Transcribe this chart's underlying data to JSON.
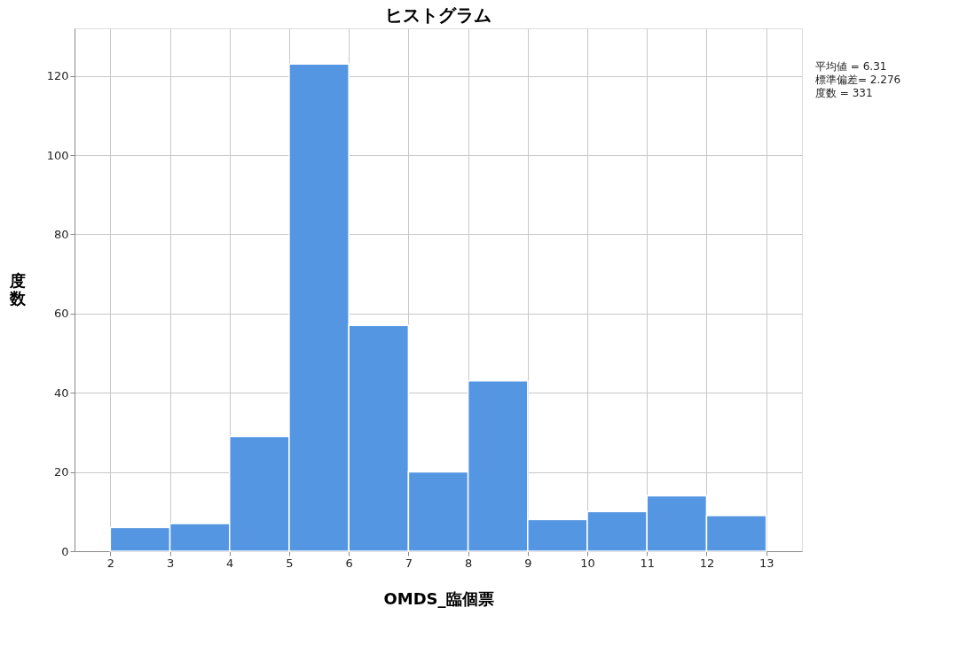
{
  "chart_data": {
    "type": "histogram",
    "title": "ヒストグラム",
    "xlabel": "OMDS_臨個票",
    "ylabel": "度数",
    "bins": [
      2,
      3,
      4,
      5,
      6,
      7,
      8,
      9,
      10,
      11,
      12,
      13
    ],
    "values": [
      6,
      7,
      29,
      123,
      57,
      20,
      43,
      8,
      10,
      14,
      9
    ],
    "color": "#5596e3",
    "xlim": [
      1.4,
      13.6
    ],
    "xticks": [
      2,
      3,
      4,
      5,
      6,
      7,
      8,
      9,
      10,
      11,
      12,
      13
    ],
    "ylim": [
      0,
      132
    ],
    "yticks": [
      0,
      20,
      40,
      60,
      80,
      100,
      120
    ],
    "grid": true,
    "annotations": [
      "平均値 = 6.31",
      "標準偏差= 2.276",
      "度数 = 331"
    ]
  }
}
